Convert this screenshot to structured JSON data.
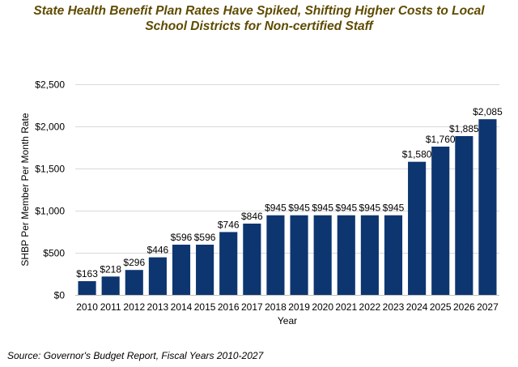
{
  "chart_data": {
    "type": "bar",
    "title_lines": [
      "State Health Benefit Plan Rates Have Spiked, Shifting Higher Costs to Local",
      "School Districts for Non-certified Staff"
    ],
    "xlabel": "Year",
    "ylabel": "SHBP Per Member Per Month Rate",
    "categories": [
      "2010",
      "2011",
      "2012",
      "2013",
      "2014",
      "2015",
      "2016",
      "2017",
      "2018",
      "2019",
      "2020",
      "2021",
      "2022",
      "2023",
      "2024",
      "2025",
      "2026",
      "2027"
    ],
    "values": [
      163,
      218,
      296,
      446,
      596,
      596,
      746,
      846,
      945,
      945,
      945,
      945,
      945,
      945,
      1580,
      1760,
      1885,
      2085
    ],
    "data_labels": [
      "$163",
      "$218",
      "$296",
      "$446",
      "$596",
      "$596",
      "$746",
      "$846",
      "$945",
      "$945",
      "$945",
      "$945",
      "$945",
      "$945",
      "$1,580",
      "$1,760",
      "$1,885",
      "$2,085"
    ],
    "ylim": [
      0,
      2500
    ],
    "yticks": [
      0,
      500,
      1000,
      1500,
      2000,
      2500
    ],
    "ytick_labels": [
      "$0",
      "$500",
      "$1,000",
      "$1,500",
      "$2,000",
      "$2,500"
    ],
    "grid": true,
    "legend": "none",
    "bar_color": "#0d3670",
    "source": "Source: Governor's Budget Report, Fiscal Years 2010-2027"
  }
}
